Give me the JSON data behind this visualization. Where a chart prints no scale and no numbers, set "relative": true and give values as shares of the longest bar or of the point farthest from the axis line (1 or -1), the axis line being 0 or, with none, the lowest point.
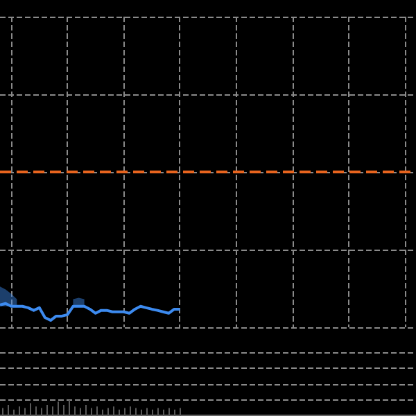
{
  "chart_data": [
    {
      "type": "line",
      "relative": true,
      "grid": true,
      "categories": [
        null,
        null,
        null,
        null,
        null,
        null,
        null,
        null,
        null,
        null,
        null,
        null,
        null,
        null,
        null,
        null,
        null,
        null,
        null,
        null,
        null,
        null,
        null,
        null,
        null,
        null,
        null,
        null,
        null,
        null,
        null,
        null,
        null,
        null,
        null,
        null,
        null,
        null,
        null,
        null,
        null,
        null,
        null,
        null,
        null,
        null,
        null,
        null,
        null,
        null,
        null,
        null,
        null,
        null,
        null,
        null,
        null,
        null,
        null,
        null,
        null,
        null,
        null,
        null,
        null,
        null,
        null,
        null,
        null,
        null,
        null,
        null,
        null,
        null,
        null
      ],
      "series": [
        {
          "color": "#3d8bf0",
          "values": [
            0.94,
            1,
            0.88,
            0.88,
            0.88,
            0.82,
            0.71,
            0.82,
            0.41,
            0.29,
            0.47,
            0.47,
            0.53,
            0.88,
            0.88,
            0.88,
            0.76,
            0.59,
            0.71,
            0.71,
            0.65,
            0.65,
            0.65,
            0.59,
            0.76,
            0.88,
            0.82,
            0.76,
            0.71,
            0.65,
            0.59,
            0.76,
            0.76,
            null,
            null,
            null,
            null,
            null,
            null,
            null,
            null,
            null,
            null,
            null,
            null,
            null,
            null,
            null,
            null,
            null,
            null,
            null,
            null,
            null,
            null,
            null,
            null,
            null,
            null,
            null,
            null,
            null,
            null,
            null,
            null,
            null,
            null,
            null,
            null,
            null,
            null,
            null,
            null,
            null,
            null
          ],
          "lower": [
            0.88,
            0.88,
            0.88,
            0.88,
            null,
            null,
            null,
            null,
            null,
            null,
            null,
            null,
            null,
            0.88,
            0.88,
            0.88,
            null,
            null,
            null,
            null,
            null,
            null,
            null,
            null,
            null,
            null,
            null,
            null,
            null,
            null,
            null,
            null,
            null,
            null,
            null,
            null,
            null,
            null,
            null,
            null,
            null,
            null,
            null,
            null,
            null,
            null,
            null,
            null,
            null,
            null,
            null,
            null,
            null,
            null,
            null,
            null,
            null,
            null,
            null,
            null,
            null,
            null,
            null,
            null,
            null,
            null,
            null,
            null,
            null,
            null,
            null,
            null,
            null,
            null,
            null
          ],
          "upper": [
            1.71,
            1.59,
            1.41,
            1.18,
            null,
            null,
            null,
            null,
            null,
            null,
            null,
            null,
            null,
            1.18,
            1.24,
            1.18,
            null,
            null,
            null,
            null,
            null,
            null,
            null,
            null,
            null,
            null,
            null,
            null,
            null,
            null,
            null,
            null,
            null,
            null,
            null,
            null,
            null,
            null,
            null,
            null,
            null,
            null,
            null,
            null,
            null,
            null,
            null,
            null,
            null,
            null,
            null,
            null,
            null,
            null,
            null,
            null,
            null,
            null,
            null,
            null,
            null,
            null,
            null,
            null,
            null,
            null,
            null,
            null,
            null,
            null,
            null,
            null,
            null,
            null,
            null
          ]
        }
      ],
      "ref_lines": [
        {
          "axis": "y",
          "value": 6.53,
          "color": "#e8641e",
          "line_style": "dashed"
        }
      ]
    },
    {
      "type": "bar",
      "relative": true,
      "categories": [
        null,
        null,
        null,
        null,
        null,
        null,
        null,
        null,
        null,
        null,
        null,
        null,
        null,
        null,
        null,
        null,
        null,
        null,
        null,
        null,
        null,
        null,
        null,
        null,
        null,
        null,
        null,
        null,
        null,
        null,
        null,
        null,
        null,
        null,
        null,
        null,
        null,
        null,
        null,
        null,
        null,
        null,
        null,
        null,
        null,
        null,
        null,
        null,
        null,
        null,
        null,
        null,
        null,
        null,
        null,
        null,
        null,
        null,
        null,
        null,
        null,
        null,
        null,
        null,
        null,
        null,
        null,
        null,
        null,
        null,
        null,
        null,
        null,
        null,
        null
      ],
      "series": [
        {
          "color": "#5a5a5a",
          "values": [
            0.5,
            0.7,
            0.4,
            0.6,
            0.5,
            0.8,
            0.6,
            0.5,
            0.7,
            0.6,
            0.9,
            0.7,
            1,
            0.6,
            0.5,
            0.7,
            0.5,
            0.6,
            0.4,
            0.5,
            0.6,
            0.4,
            0.5,
            0.6,
            0.5,
            0.4,
            0.5,
            0.4,
            0.5,
            0.4,
            0.5,
            0.4,
            0.5,
            null,
            null,
            null,
            null,
            null,
            null,
            null,
            null,
            null,
            null,
            null,
            null,
            null,
            null,
            null,
            null,
            null,
            null,
            null,
            null,
            null,
            null,
            null,
            null,
            null,
            null,
            null,
            null,
            null,
            null,
            null,
            null,
            null,
            null,
            null,
            null,
            null,
            null,
            null,
            null,
            null,
            null
          ]
        }
      ]
    }
  ]
}
